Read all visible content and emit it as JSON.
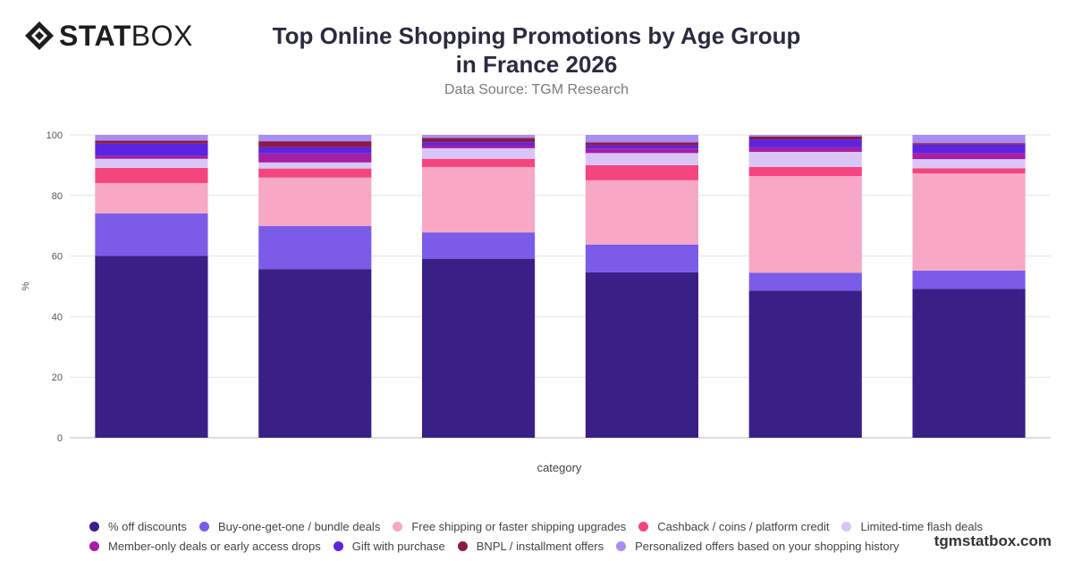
{
  "brand": {
    "logo_bold": "STAT",
    "logo_light": "BOX",
    "watermark": "tgmstatbox.com"
  },
  "chart_data": {
    "type": "bar",
    "stacked": true,
    "title": "Top Online Shopping Promotions by Age Group in France 2026",
    "subtitle": "Data Source: TGM Research",
    "xlabel": "category",
    "ylabel": "%",
    "ylim": [
      0,
      100
    ],
    "yticks": [
      0,
      20,
      40,
      60,
      80,
      100
    ],
    "grid": true,
    "legend_position": "bottom",
    "categories": [
      "",
      "",
      "",
      "",
      "",
      ""
    ],
    "series": [
      {
        "name": "% off discounts",
        "color": "#3a1f87",
        "values": [
          60.1,
          55.7,
          59.1,
          54.6,
          48.6,
          49.2
        ]
      },
      {
        "name": "Buy-one-get-one / bundle deals",
        "color": "#7b5ce8",
        "values": [
          14.0,
          14.2,
          8.7,
          9.2,
          5.9,
          6.0
        ]
      },
      {
        "name": "Free shipping or faster shipping upgrades",
        "color": "#f7a8c4",
        "values": [
          10.0,
          16.0,
          21.6,
          21.2,
          31.9,
          32.1
        ]
      },
      {
        "name": "Cashback / coins / platform credit",
        "color": "#f4457f",
        "values": [
          5.0,
          3.0,
          2.7,
          5.0,
          3.0,
          1.7
        ]
      },
      {
        "name": "Limited-time flash deals",
        "color": "#d9c6f6",
        "values": [
          3.0,
          2.0,
          3.5,
          4.0,
          5.0,
          3.0
        ]
      },
      {
        "name": "Member-only deals or early access drops",
        "color": "#a61ea5",
        "values": [
          1.0,
          3.0,
          1.0,
          1.5,
          1.5,
          2.0
        ]
      },
      {
        "name": "Gift with purchase",
        "color": "#5b24e0",
        "values": [
          4.0,
          2.0,
          1.0,
          1.0,
          2.6,
          2.8
        ]
      },
      {
        "name": "BNPL / installment offers",
        "color": "#8b1a48",
        "values": [
          1.0,
          2.0,
          1.4,
          1.0,
          1.0,
          0.5
        ]
      },
      {
        "name": "Personalized offers based on your shopping history",
        "color": "#a98df0",
        "values": [
          1.9,
          2.1,
          1.0,
          2.5,
          0.5,
          2.7
        ]
      }
    ]
  }
}
